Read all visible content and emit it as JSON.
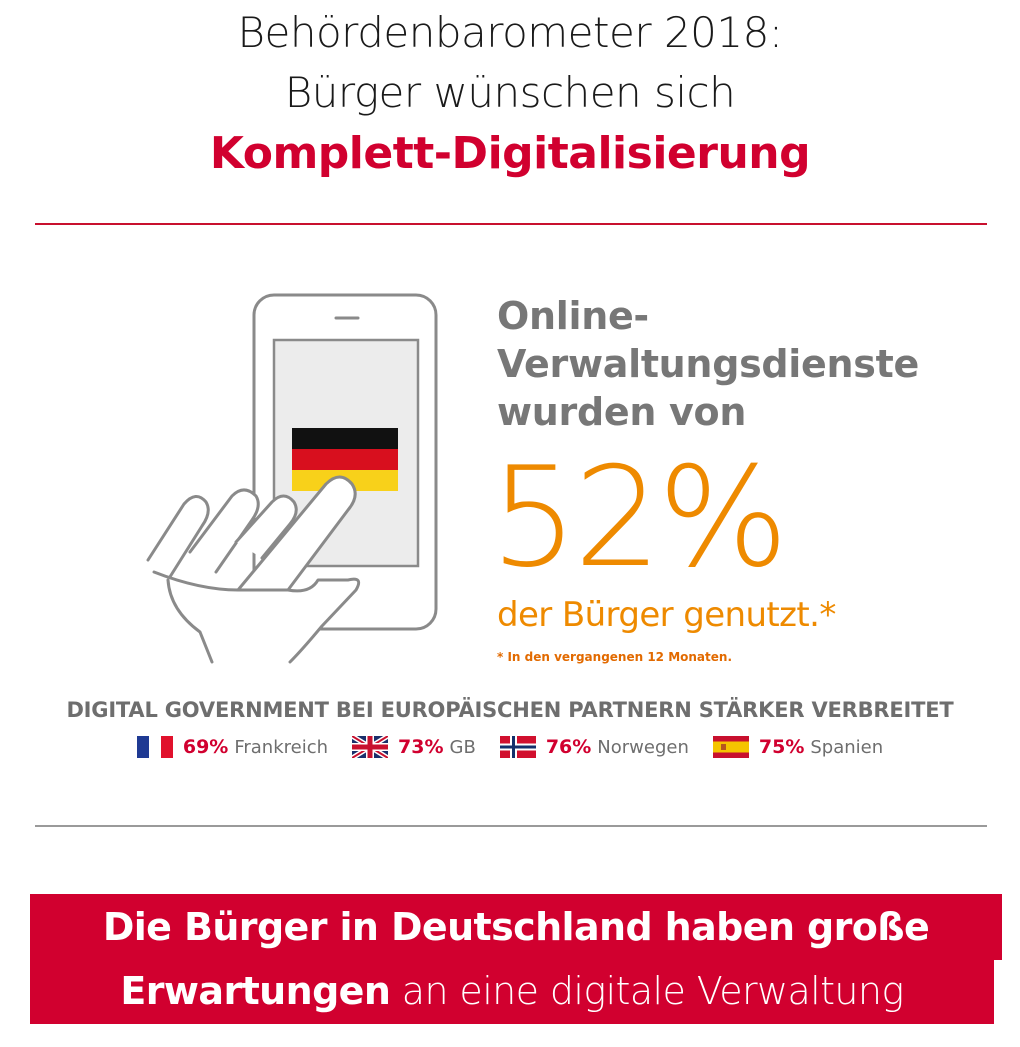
{
  "title": {
    "line1": "Behördenbarometer 2018:",
    "line2": "Bürger wünschen sich",
    "line3": "Komplett-Digitalisierung"
  },
  "headline": {
    "line1": "Online-",
    "line2": "Verwaltungsdienste",
    "line3": "wurden von"
  },
  "stat": {
    "value": "52%",
    "label": "der Bürger genutzt.*",
    "footnote": "* In den vergangenen 12 Monaten."
  },
  "illustration": {
    "icon": "hand-tapping-smartphone-icon",
    "flag": "germany-flag"
  },
  "partners": {
    "heading": "DIGITAL GOVERNMENT BEI EUROPÄISCHEN PARTNERN STÄRKER VERBREITET",
    "items": [
      {
        "flag": "france-flag",
        "pct": "69%",
        "country": "Frankreich"
      },
      {
        "flag": "uk-flag",
        "pct": "73%",
        "country": "GB"
      },
      {
        "flag": "norway-flag",
        "pct": "76%",
        "country": "Norwegen"
      },
      {
        "flag": "spain-flag",
        "pct": "75%",
        "country": "Spanien"
      }
    ]
  },
  "banner": {
    "line1": "Die Bürger in Deutschland haben große",
    "line2_bold": "Erwartungen",
    "line2_light": "an  eine digitale Verwaltung"
  },
  "colors": {
    "brand_red": "#d1002f",
    "accent_orange": "#ee8a00",
    "gray_text": "#777777"
  }
}
